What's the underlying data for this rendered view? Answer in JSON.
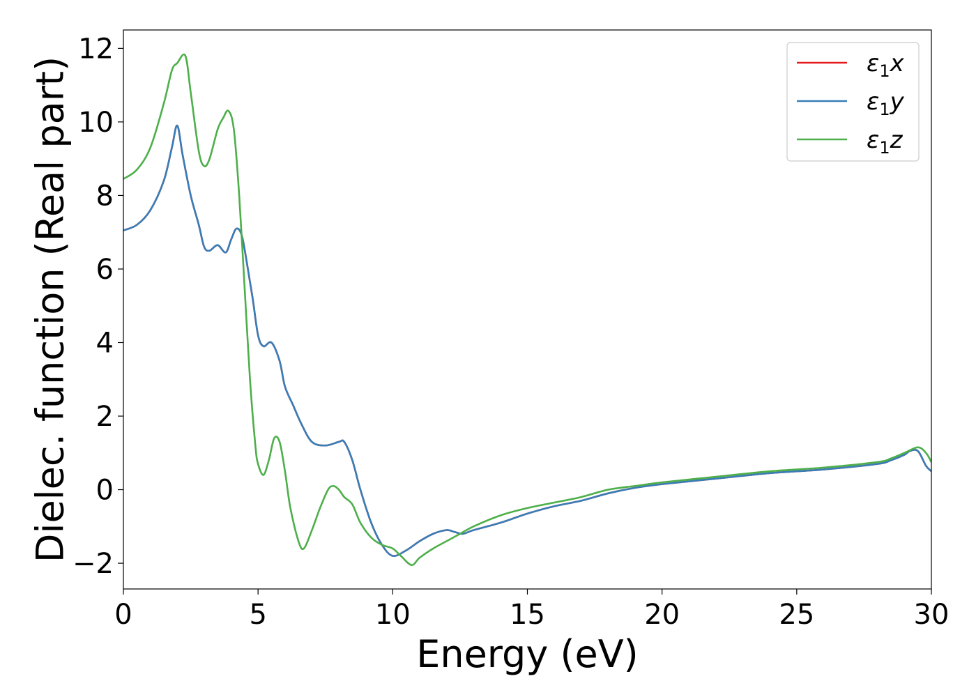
{
  "chart_data": {
    "type": "line",
    "xlabel": "Energy (eV)",
    "ylabel": "Dielec. function (Real part)",
    "xlim": [
      0,
      30
    ],
    "ylim": [
      -2.7,
      12.5
    ],
    "x_ticks": [
      0,
      5,
      10,
      15,
      20,
      25,
      30
    ],
    "x_tick_labels": [
      "0",
      "5",
      "10",
      "15",
      "20",
      "25",
      "30"
    ],
    "y_ticks": [
      -2,
      0,
      2,
      4,
      6,
      8,
      10,
      12
    ],
    "y_tick_labels": [
      "−2",
      "0",
      "2",
      "4",
      "6",
      "8",
      "10",
      "12"
    ],
    "grid": false,
    "legend_position": "top-right",
    "series": [
      {
        "name": "ε₁x",
        "legend_symbol": "ε",
        "legend_sub": "1",
        "legend_axis": "x",
        "color": "#e41a1c",
        "x": [
          0,
          0.5,
          1.0,
          1.5,
          1.8,
          2.0,
          2.2,
          2.5,
          2.8,
          3.0,
          3.2,
          3.5,
          3.8,
          4.0,
          4.2,
          4.4,
          4.6,
          4.8,
          5.0,
          5.2,
          5.5,
          5.8,
          6.0,
          6.3,
          6.6,
          7.0,
          7.5,
          8.0,
          8.2,
          8.5,
          8.8,
          9.2,
          9.6,
          10.0,
          10.5,
          11.0,
          11.5,
          12.0,
          12.3,
          12.6,
          13.0,
          14.0,
          15.0,
          16.0,
          17.0,
          18.0,
          19.0,
          20.0,
          22.0,
          24.0,
          26.0,
          28.0,
          28.5,
          29.0,
          29.2,
          29.5,
          29.8,
          30.0
        ],
        "y": [
          7.05,
          7.2,
          7.6,
          8.4,
          9.3,
          9.9,
          9.1,
          8.0,
          7.2,
          6.6,
          6.5,
          6.65,
          6.45,
          6.8,
          7.1,
          6.9,
          6.1,
          5.2,
          4.2,
          3.9,
          4.0,
          3.5,
          2.8,
          2.3,
          1.8,
          1.3,
          1.2,
          1.3,
          1.3,
          0.8,
          0.0,
          -0.9,
          -1.5,
          -1.8,
          -1.65,
          -1.4,
          -1.2,
          -1.1,
          -1.15,
          -1.2,
          -1.1,
          -0.9,
          -0.65,
          -0.45,
          -0.3,
          -0.1,
          0.05,
          0.15,
          0.3,
          0.45,
          0.55,
          0.7,
          0.8,
          0.95,
          1.05,
          1.05,
          0.65,
          0.5
        ]
      },
      {
        "name": "ε₁y",
        "legend_symbol": "ε",
        "legend_sub": "1",
        "legend_axis": "y",
        "color": "#377eb8",
        "x": [
          0,
          0.5,
          1.0,
          1.5,
          1.8,
          2.0,
          2.2,
          2.5,
          2.8,
          3.0,
          3.2,
          3.5,
          3.8,
          4.0,
          4.2,
          4.4,
          4.6,
          4.8,
          5.0,
          5.2,
          5.5,
          5.8,
          6.0,
          6.3,
          6.6,
          7.0,
          7.5,
          8.0,
          8.2,
          8.5,
          8.8,
          9.2,
          9.6,
          10.0,
          10.5,
          11.0,
          11.5,
          12.0,
          12.3,
          12.6,
          13.0,
          14.0,
          15.0,
          16.0,
          17.0,
          18.0,
          19.0,
          20.0,
          22.0,
          24.0,
          26.0,
          28.0,
          28.5,
          29.0,
          29.2,
          29.5,
          29.8,
          30.0
        ],
        "y": [
          7.05,
          7.2,
          7.6,
          8.4,
          9.3,
          9.9,
          9.1,
          8.0,
          7.2,
          6.6,
          6.5,
          6.65,
          6.45,
          6.8,
          7.1,
          6.9,
          6.1,
          5.2,
          4.2,
          3.9,
          4.0,
          3.5,
          2.8,
          2.3,
          1.8,
          1.3,
          1.2,
          1.3,
          1.3,
          0.8,
          0.0,
          -0.9,
          -1.5,
          -1.8,
          -1.65,
          -1.4,
          -1.2,
          -1.1,
          -1.15,
          -1.2,
          -1.1,
          -0.9,
          -0.65,
          -0.45,
          -0.3,
          -0.1,
          0.05,
          0.15,
          0.3,
          0.45,
          0.55,
          0.7,
          0.8,
          0.95,
          1.05,
          1.05,
          0.65,
          0.5
        ]
      },
      {
        "name": "ε₁z",
        "legend_symbol": "ε",
        "legend_sub": "1",
        "legend_axis": "z",
        "color": "#4daf4a",
        "x": [
          0,
          0.5,
          1.0,
          1.5,
          1.8,
          2.0,
          2.3,
          2.5,
          2.8,
          3.0,
          3.2,
          3.5,
          3.7,
          3.9,
          4.1,
          4.3,
          4.5,
          4.7,
          4.9,
          5.0,
          5.2,
          5.4,
          5.6,
          5.8,
          6.0,
          6.2,
          6.5,
          6.7,
          7.0,
          7.3,
          7.6,
          7.8,
          8.0,
          8.2,
          8.5,
          8.8,
          9.2,
          9.6,
          10.0,
          10.3,
          10.7,
          11.0,
          11.5,
          12.0,
          12.5,
          13.0,
          14.0,
          15.0,
          16.0,
          17.0,
          18.0,
          19.0,
          20.0,
          22.0,
          24.0,
          26.0,
          28.0,
          28.5,
          29.0,
          29.5,
          29.8,
          30.0
        ],
        "y": [
          8.45,
          8.7,
          9.3,
          10.5,
          11.4,
          11.6,
          11.8,
          10.8,
          9.2,
          8.8,
          9.0,
          9.8,
          10.1,
          10.3,
          9.8,
          8.0,
          5.5,
          3.0,
          1.2,
          0.7,
          0.4,
          0.8,
          1.4,
          1.3,
          0.5,
          -0.5,
          -1.4,
          -1.6,
          -1.1,
          -0.5,
          0.0,
          0.1,
          0.0,
          -0.2,
          -0.4,
          -0.9,
          -1.3,
          -1.5,
          -1.6,
          -1.8,
          -2.05,
          -1.85,
          -1.6,
          -1.4,
          -1.2,
          -1.0,
          -0.7,
          -0.5,
          -0.35,
          -0.2,
          0.0,
          0.1,
          0.2,
          0.35,
          0.5,
          0.6,
          0.75,
          0.85,
          1.0,
          1.15,
          1.0,
          0.75
        ]
      }
    ]
  }
}
